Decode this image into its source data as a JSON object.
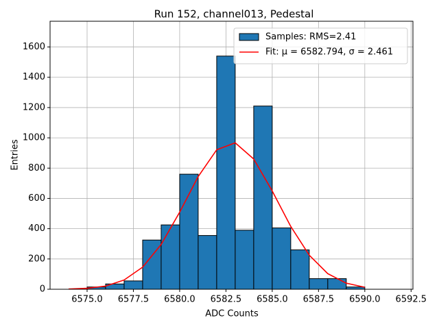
{
  "chart_data": {
    "type": "histogram",
    "title": "Run 152, channel013, Pedestal",
    "xlabel": "ADC Counts",
    "ylabel": "Entries",
    "bins": [
      6575,
      6576,
      6577,
      6578,
      6579,
      6580,
      6581,
      6582,
      6583,
      6584,
      6585,
      6586,
      6587,
      6588,
      6589,
      6590
    ],
    "series": [
      {
        "name": "Samples: RMS=2.41",
        "color": "#1f77b4",
        "edgecolor": "#000000",
        "values": [
          15,
          35,
          55,
          325,
          425,
          760,
          355,
          1540,
          390,
          1210,
          405,
          260,
          70,
          70,
          15
        ]
      },
      {
        "type": "line",
        "name": "Fit: μ = 6582.794, σ = 2.461",
        "color": "#ff0000",
        "x": [
          6574,
          6575,
          6576,
          6577,
          6578,
          6579,
          6580,
          6581,
          6582,
          6583,
          6584,
          6585,
          6586,
          6587,
          6588,
          6589,
          6590
        ],
        "values": [
          1.6,
          6.4,
          21,
          61,
          146,
          296,
          509,
          744,
          921,
          967,
          860,
          649,
          415,
          225,
          103,
          40,
          13
        ]
      }
    ],
    "xlim": [
      6573.0,
      6592.6
    ],
    "xticks": [
      {
        "value": 6575,
        "label": "6575.0"
      },
      {
        "value": 6577.5,
        "label": "6577.5"
      },
      {
        "value": 6580,
        "label": "6580.0"
      },
      {
        "value": 6582.5,
        "label": "6582.5"
      },
      {
        "value": 6585,
        "label": "6585.0"
      },
      {
        "value": 6587.5,
        "label": "6587.5"
      },
      {
        "value": 6590,
        "label": "6590.0"
      },
      {
        "value": 6592.5,
        "label": "6592.5"
      }
    ],
    "ylim": [
      0,
      1770
    ],
    "yticks": [
      0,
      200,
      400,
      600,
      800,
      1000,
      1200,
      1400,
      1600
    ],
    "grid": true,
    "legend": "upper-right"
  }
}
